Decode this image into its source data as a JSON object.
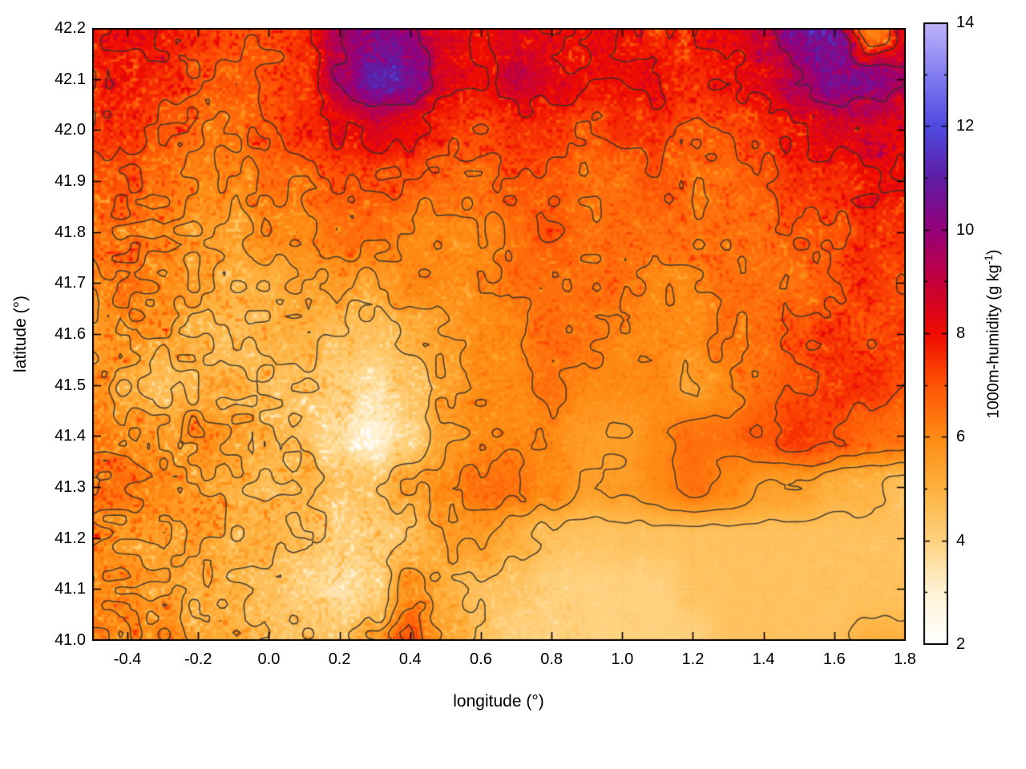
{
  "figure": {
    "background": "#ffffff",
    "x_tick_labels": [
      "-0.4",
      "-0.2",
      "0.0",
      "0.2",
      "0.4",
      "0.6",
      "0.8",
      "1.0",
      "1.2",
      "1.4",
      "1.6",
      "1.8"
    ],
    "x_tick_values": [
      -0.4,
      -0.2,
      0.0,
      0.2,
      0.4,
      0.6,
      0.8,
      1.0,
      1.2,
      1.4,
      1.6,
      1.8
    ],
    "y_tick_labels": [
      "41.0",
      "41.1",
      "41.2",
      "41.3",
      "41.4",
      "41.5",
      "41.6",
      "41.7",
      "41.8",
      "41.9",
      "42.0",
      "42.1",
      "42.2"
    ],
    "y_tick_values": [
      41.0,
      41.1,
      41.2,
      41.3,
      41.4,
      41.5,
      41.6,
      41.7,
      41.8,
      41.9,
      42.0,
      42.1,
      42.2
    ],
    "cb_tick_labels": [
      "2",
      "4",
      "6",
      "8",
      "10",
      "12",
      "14"
    ],
    "cb_tick_values": [
      2,
      4,
      6,
      8,
      10,
      12,
      14
    ]
  },
  "chart_data": {
    "type": "heatmap",
    "title": "",
    "xlabel": "longitude (°)",
    "ylabel": "latitude (°)",
    "x_range": [
      -0.5,
      1.8
    ],
    "y_range": [
      41.0,
      42.2
    ],
    "grid_on": true,
    "colorbar": {
      "label": "1000m-humidity (g kg⁻¹)",
      "label_main": "1000m-humidity (g kg",
      "label_sup": "-1",
      "label_close": ")",
      "range": [
        2,
        14
      ],
      "ticks": [
        2,
        4,
        6,
        8,
        10,
        12,
        14
      ],
      "position": "right"
    },
    "palette": [
      {
        "v": 2.0,
        "c": "#ffffff"
      },
      {
        "v": 3.0,
        "c": "#fff3d6"
      },
      {
        "v": 4.0,
        "c": "#ffd27f"
      },
      {
        "v": 5.0,
        "c": "#ffb23f"
      },
      {
        "v": 6.0,
        "c": "#ff8b13"
      },
      {
        "v": 7.0,
        "c": "#ff5405"
      },
      {
        "v": 8.0,
        "c": "#ef0b00"
      },
      {
        "v": 9.0,
        "c": "#c4003a"
      },
      {
        "v": 10.0,
        "c": "#95007a"
      },
      {
        "v": 11.0,
        "c": "#5f1da5"
      },
      {
        "v": 12.0,
        "c": "#4f4ae0"
      },
      {
        "v": 13.0,
        "c": "#837df0"
      },
      {
        "v": 14.0,
        "c": "#beb4fa"
      }
    ],
    "contour_levels": [
      4.75,
      5.5,
      6.25,
      7.0,
      8.0,
      9.5
    ],
    "contour_color": "#2f2f2f",
    "grid": {
      "comment_units": "1000m-humidity in g/kg, row 0 = lat 42.2 (north), col 0 = lon -0.5 (west)",
      "nx": 24,
      "ny": 13,
      "lon0": -0.5,
      "dlon": 0.1,
      "lat0": 42.2,
      "dlat": -0.1,
      "values": [
        [
          8,
          8,
          8,
          7.5,
          7,
          7,
          7.5,
          9.5,
          10.5,
          10,
          8.5,
          8,
          8.5,
          8,
          8,
          8,
          7.5,
          8,
          8,
          9,
          10.5,
          10.5,
          6,
          8
        ],
        [
          7.5,
          8,
          7.5,
          7,
          7,
          7,
          7.5,
          9.5,
          11,
          10.5,
          8.5,
          8,
          9,
          8.5,
          8,
          8,
          8,
          7.5,
          8,
          8.5,
          9.5,
          10.5,
          10.5,
          9.5
        ],
        [
          7.5,
          7.5,
          7,
          6.5,
          6.5,
          7,
          7.5,
          8,
          8.5,
          8,
          7.5,
          7,
          7.5,
          7.5,
          7,
          7.5,
          7.5,
          7,
          7,
          7.5,
          8,
          8.5,
          8.5,
          8
        ],
        [
          7,
          7,
          6.5,
          6,
          6,
          6.5,
          6.5,
          7,
          7,
          7,
          6.5,
          6.5,
          7,
          7,
          6.5,
          6.5,
          7,
          6.5,
          6.5,
          7,
          7.5,
          7.5,
          8,
          8
        ],
        [
          6.5,
          6.5,
          6,
          5.5,
          5.5,
          6,
          6,
          6.5,
          6.5,
          6,
          6,
          6,
          6.5,
          7,
          6.5,
          6.5,
          6.5,
          6.5,
          6.5,
          6.5,
          7,
          7,
          7.5,
          7.5
        ],
        [
          6,
          6.5,
          6,
          5.5,
          5,
          5,
          5.5,
          5.5,
          5.5,
          6,
          6,
          6,
          6.5,
          6.5,
          6.5,
          6.5,
          6,
          6,
          6.5,
          6.5,
          6.5,
          7,
          7.5,
          7
        ],
        [
          5.5,
          6,
          5.5,
          5,
          4.5,
          5,
          5,
          4.5,
          4.5,
          5,
          5.5,
          6,
          6,
          6.5,
          6.5,
          6,
          6,
          6,
          6.5,
          6.5,
          7,
          7.5,
          7,
          7.5
        ],
        [
          6,
          5,
          4.5,
          5,
          5,
          4.5,
          4.5,
          4,
          3.5,
          4.5,
          5.5,
          6,
          6,
          6.5,
          6,
          6,
          6,
          5.5,
          6,
          6.5,
          7,
          7.5,
          7.5,
          7
        ],
        [
          6.5,
          6,
          5.5,
          6,
          5.5,
          5,
          4.5,
          3.5,
          3,
          4,
          5.5,
          6,
          6,
          6,
          5.5,
          5.5,
          6,
          6.5,
          6.5,
          7,
          7.5,
          7,
          6.5,
          6.5
        ],
        [
          6.5,
          6.5,
          6,
          5.5,
          5,
          4.5,
          5,
          4.5,
          4.5,
          5.5,
          6,
          6.5,
          6.5,
          6,
          5.5,
          5.5,
          6,
          6.5,
          6,
          5.5,
          5.5,
          5,
          5,
          4.5
        ],
        [
          6,
          5.5,
          5.5,
          5.5,
          5,
          5,
          4.5,
          4,
          4,
          4.5,
          5.5,
          5.5,
          5,
          4.5,
          4.5,
          4.5,
          4.5,
          4.5,
          4.5,
          4.5,
          4.5,
          4.5,
          4.5,
          4.5
        ],
        [
          6,
          6,
          5.5,
          5,
          5,
          4.5,
          4,
          3.5,
          4,
          6,
          5,
          4.5,
          4.5,
          4,
          4,
          4,
          4,
          4.5,
          4.5,
          4.5,
          4.5,
          4.5,
          4.5,
          4.5
        ],
        [
          6.5,
          6,
          6,
          5.5,
          5,
          4.5,
          4.5,
          4.5,
          5.5,
          7,
          5.5,
          4.5,
          4,
          4,
          4,
          4,
          4,
          4,
          4.5,
          4.5,
          4.5,
          4.5,
          5,
          5
        ]
      ]
    },
    "speckle_amp": {
      "comment": "relative graininess of the field, row 0 = lat 42.2",
      "nx": 12,
      "ny": 7,
      "values": [
        [
          0.8,
          0.8,
          0.7,
          0.7,
          0.7,
          0.7,
          0.7,
          0.7,
          0.7,
          0.7,
          0.8,
          0.8
        ],
        [
          0.9,
          0.8,
          0.7,
          0.6,
          0.6,
          0.6,
          0.6,
          0.6,
          0.6,
          0.6,
          0.7,
          0.7
        ],
        [
          0.9,
          0.9,
          0.7,
          0.6,
          0.5,
          0.5,
          0.5,
          0.5,
          0.5,
          0.5,
          0.6,
          0.6
        ],
        [
          0.9,
          0.9,
          0.8,
          0.7,
          0.6,
          0.5,
          0.4,
          0.4,
          0.4,
          0.5,
          0.6,
          0.5
        ],
        [
          0.9,
          0.9,
          0.8,
          0.8,
          0.7,
          0.5,
          0.4,
          0.2,
          0.2,
          0.3,
          0.4,
          0.3
        ],
        [
          0.9,
          0.9,
          0.8,
          0.8,
          0.7,
          0.5,
          0.3,
          0.15,
          0.1,
          0.1,
          0.15,
          0.15
        ],
        [
          0.9,
          0.8,
          0.8,
          0.7,
          0.7,
          0.5,
          0.3,
          0.1,
          0.1,
          0.1,
          0.1,
          0.15
        ]
      ]
    }
  }
}
